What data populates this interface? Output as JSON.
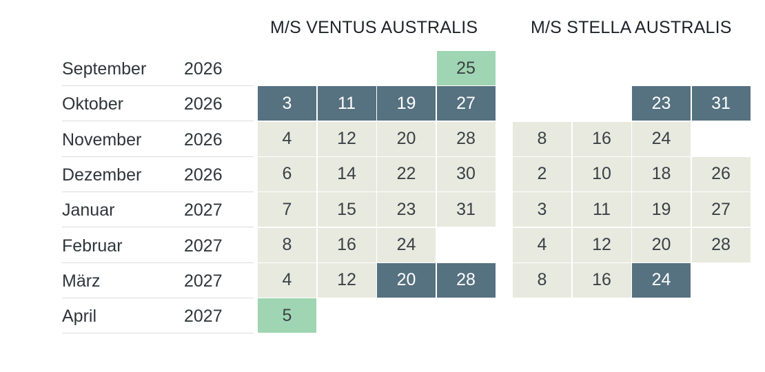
{
  "ships": [
    {
      "name": "M/S VENTUS AUSTRALIS"
    },
    {
      "name": "M/S STELLA AUSTRALIS"
    }
  ],
  "legend_colors": {
    "regular": "#e8eadf",
    "highlight_dark": "#567180",
    "highlight_green": "#9fd5b2"
  },
  "rows": [
    {
      "month": "September",
      "year": "2026",
      "ventus": [
        null,
        null,
        null,
        {
          "day": "25",
          "style": "green"
        }
      ],
      "stella": [
        null,
        null,
        null,
        null
      ]
    },
    {
      "month": "Oktober",
      "year": "2026",
      "ventus": [
        {
          "day": "3",
          "style": "dark"
        },
        {
          "day": "11",
          "style": "dark"
        },
        {
          "day": "19",
          "style": "dark"
        },
        {
          "day": "27",
          "style": "dark"
        }
      ],
      "stella": [
        null,
        null,
        {
          "day": "23",
          "style": "dark"
        },
        {
          "day": "31",
          "style": "dark"
        }
      ]
    },
    {
      "month": "November",
      "year": "2026",
      "ventus": [
        {
          "day": "4",
          "style": "regular"
        },
        {
          "day": "12",
          "style": "regular"
        },
        {
          "day": "20",
          "style": "regular"
        },
        {
          "day": "28",
          "style": "regular"
        }
      ],
      "stella": [
        {
          "day": "8",
          "style": "regular"
        },
        {
          "day": "16",
          "style": "regular"
        },
        {
          "day": "24",
          "style": "regular"
        },
        null
      ]
    },
    {
      "month": "Dezember",
      "year": "2026",
      "ventus": [
        {
          "day": "6",
          "style": "regular"
        },
        {
          "day": "14",
          "style": "regular"
        },
        {
          "day": "22",
          "style": "regular"
        },
        {
          "day": "30",
          "style": "regular"
        }
      ],
      "stella": [
        {
          "day": "2",
          "style": "regular"
        },
        {
          "day": "10",
          "style": "regular"
        },
        {
          "day": "18",
          "style": "regular"
        },
        {
          "day": "26",
          "style": "regular"
        }
      ]
    },
    {
      "month": "Januar",
      "year": "2027",
      "ventus": [
        {
          "day": "7",
          "style": "regular"
        },
        {
          "day": "15",
          "style": "regular"
        },
        {
          "day": "23",
          "style": "regular"
        },
        {
          "day": "31",
          "style": "regular"
        }
      ],
      "stella": [
        {
          "day": "3",
          "style": "regular"
        },
        {
          "day": "11",
          "style": "regular"
        },
        {
          "day": "19",
          "style": "regular"
        },
        {
          "day": "27",
          "style": "regular"
        }
      ]
    },
    {
      "month": "Februar",
      "year": "2027",
      "ventus": [
        {
          "day": "8",
          "style": "regular"
        },
        {
          "day": "16",
          "style": "regular"
        },
        {
          "day": "24",
          "style": "regular"
        },
        null
      ],
      "stella": [
        {
          "day": "4",
          "style": "regular"
        },
        {
          "day": "12",
          "style": "regular"
        },
        {
          "day": "20",
          "style": "regular"
        },
        {
          "day": "28",
          "style": "regular"
        }
      ]
    },
    {
      "month": "März",
      "year": "2027",
      "ventus": [
        {
          "day": "4",
          "style": "regular"
        },
        {
          "day": "12",
          "style": "regular"
        },
        {
          "day": "20",
          "style": "dark"
        },
        {
          "day": "28",
          "style": "dark"
        }
      ],
      "stella": [
        {
          "day": "8",
          "style": "regular"
        },
        {
          "day": "16",
          "style": "regular"
        },
        {
          "day": "24",
          "style": "dark"
        },
        null
      ]
    },
    {
      "month": "April",
      "year": "2027",
      "ventus": [
        {
          "day": "5",
          "style": "green"
        },
        null,
        null,
        null
      ],
      "stella": [
        null,
        null,
        null,
        null
      ]
    }
  ]
}
